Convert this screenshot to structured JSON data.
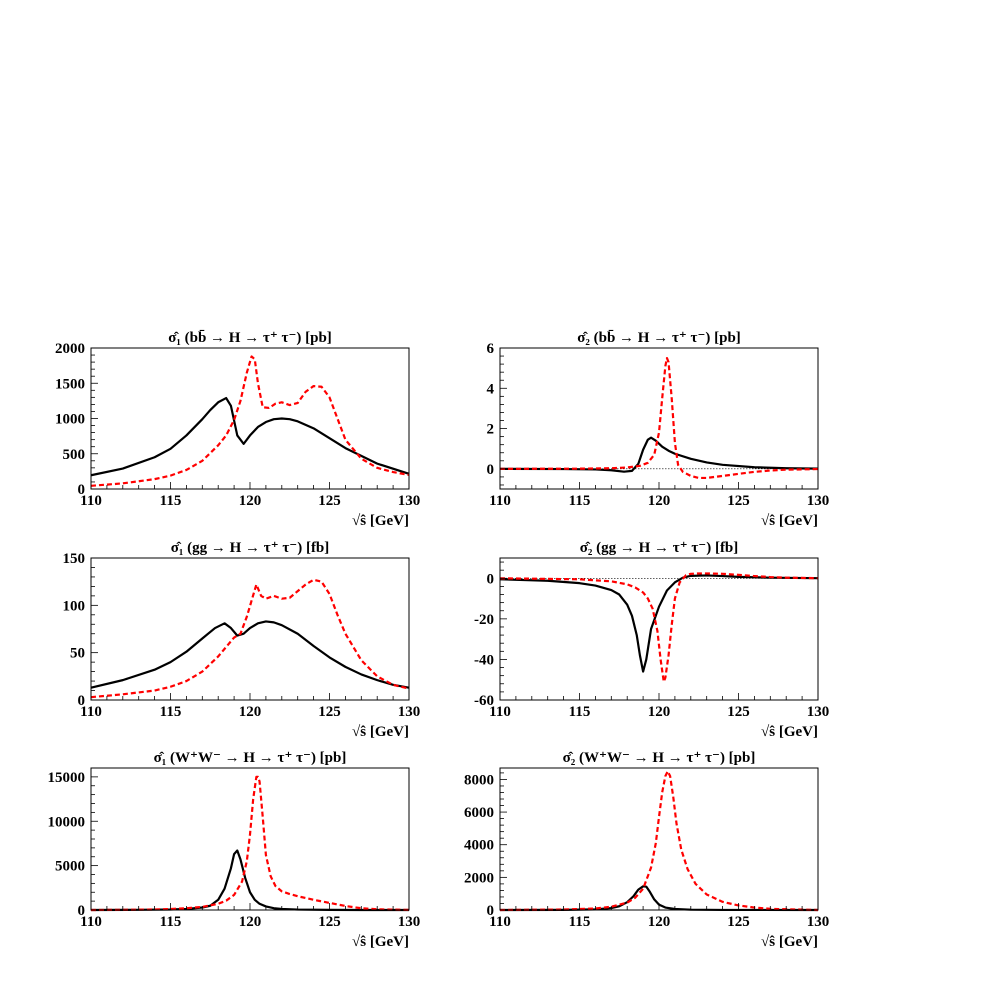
{
  "chart_data": [
    {
      "type": "line",
      "title": "σ̂₁ (bb̄ → H → τ⁺ τ⁻) [pb]",
      "xlabel": "√ŝ [GeV]",
      "ylabel": "",
      "xlim": [
        110,
        130
      ],
      "ylim": [
        0,
        2000
      ],
      "xticks": [
        110,
        115,
        120,
        125,
        130
      ],
      "yticks": [
        0,
        500,
        1000,
        1500,
        2000
      ],
      "zero_line": false,
      "series": [
        {
          "style": "solid",
          "color": "#000000",
          "x": [
            110,
            112,
            114,
            115,
            116,
            117,
            117.5,
            118,
            118.5,
            118.8,
            119.2,
            119.6,
            120,
            120.5,
            121,
            121.5,
            122,
            122.5,
            123,
            124,
            125,
            126,
            128,
            130
          ],
          "y": [
            195,
            290,
            450,
            570,
            760,
            990,
            1120,
            1230,
            1290,
            1180,
            760,
            640,
            760,
            880,
            950,
            990,
            1000,
            990,
            960,
            860,
            720,
            580,
            360,
            215
          ]
        },
        {
          "style": "dashed",
          "color": "#ff0000",
          "x": [
            110,
            112,
            114,
            115,
            116,
            117,
            118,
            118.5,
            119,
            119.4,
            119.8,
            120.1,
            120.3,
            120.5,
            120.8,
            121.2,
            121.6,
            122,
            122.5,
            123,
            123.5,
            124,
            124.5,
            125,
            125.5,
            126,
            127,
            128,
            129,
            130
          ],
          "y": [
            45,
            80,
            140,
            190,
            270,
            400,
            620,
            760,
            980,
            1250,
            1650,
            1880,
            1840,
            1500,
            1160,
            1150,
            1210,
            1230,
            1190,
            1220,
            1380,
            1460,
            1450,
            1300,
            1000,
            700,
            430,
            300,
            240,
            200
          ]
        }
      ]
    },
    {
      "type": "line",
      "title": "σ̂₂ (bb̄ → H → τ⁺ τ⁻) [pb]",
      "xlabel": "√ŝ [GeV]",
      "ylabel": "",
      "xlim": [
        110,
        130
      ],
      "ylim": [
        -1,
        6
      ],
      "xticks": [
        110,
        115,
        120,
        125,
        130
      ],
      "yticks": [
        0,
        2,
        4,
        6
      ],
      "zero_line": true,
      "series": [
        {
          "style": "solid",
          "color": "#000000",
          "x": [
            110,
            114,
            116,
            117,
            117.8,
            118.3,
            118.7,
            119,
            119.3,
            119.5,
            119.8,
            120.2,
            120.6,
            121,
            122,
            123,
            124,
            126,
            128,
            130
          ],
          "y": [
            0,
            -0.01,
            -0.03,
            -0.07,
            -0.14,
            -0.1,
            0.25,
            0.95,
            1.45,
            1.55,
            1.4,
            1.1,
            0.9,
            0.75,
            0.5,
            0.32,
            0.2,
            0.08,
            0.03,
            0.01
          ]
        },
        {
          "style": "dashed",
          "color": "#ff0000",
          "x": [
            110,
            115,
            117,
            118,
            118.8,
            119.3,
            119.7,
            120,
            120.2,
            120.4,
            120.5,
            120.6,
            120.8,
            121,
            121.2,
            121.5,
            122,
            122.5,
            123,
            124,
            125,
            126,
            127,
            128,
            130
          ],
          "y": [
            0,
            0.01,
            0.03,
            0.07,
            0.15,
            0.3,
            0.7,
            1.8,
            3.5,
            5.1,
            5.5,
            5.3,
            3.5,
            1.3,
            0.2,
            -0.15,
            -0.35,
            -0.45,
            -0.45,
            -0.35,
            -0.25,
            -0.15,
            -0.08,
            -0.04,
            -0.01
          ]
        }
      ]
    },
    {
      "type": "line",
      "title": "σ̂₁ (gg → H → τ⁺ τ⁻) [fb]",
      "xlabel": "√ŝ [GeV]",
      "ylabel": "",
      "xlim": [
        110,
        130
      ],
      "ylim": [
        0,
        150
      ],
      "xticks": [
        110,
        115,
        120,
        125,
        130
      ],
      "yticks": [
        0,
        50,
        100,
        150
      ],
      "zero_line": false,
      "series": [
        {
          "style": "solid",
          "color": "#000000",
          "x": [
            110,
            112,
            114,
            115,
            116,
            117,
            117.8,
            118.4,
            118.8,
            119.2,
            119.6,
            120,
            120.5,
            121,
            121.5,
            122,
            123,
            124,
            125,
            126,
            127,
            128,
            129,
            130
          ],
          "y": [
            13,
            21,
            32,
            40,
            51,
            65,
            76,
            81,
            76,
            68,
            70,
            76,
            81,
            83,
            82,
            79,
            70,
            57,
            45,
            35,
            27,
            21,
            16,
            13
          ]
        },
        {
          "style": "dashed",
          "color": "#ff0000",
          "x": [
            110,
            112,
            114,
            115,
            116,
            117,
            118,
            118.5,
            119,
            119.4,
            119.8,
            120.1,
            120.4,
            120.7,
            121,
            121.5,
            122,
            122.5,
            123,
            123.5,
            124,
            124.5,
            125,
            125.5,
            126,
            127,
            128,
            129,
            130
          ],
          "y": [
            3,
            6,
            10,
            14,
            20,
            30,
            46,
            56,
            66,
            70,
            88,
            105,
            122,
            110,
            107,
            110,
            107,
            108,
            115,
            122,
            127,
            125,
            112,
            90,
            70,
            42,
            25,
            16,
            12
          ]
        }
      ]
    },
    {
      "type": "line",
      "title": "σ̂₂ (gg → H → τ⁺ τ⁻) [fb]",
      "xlabel": "√ŝ [GeV]",
      "ylabel": "",
      "xlim": [
        110,
        130
      ],
      "ylim": [
        -60,
        10
      ],
      "xticks": [
        110,
        115,
        120,
        125,
        130
      ],
      "yticks": [
        -60,
        -40,
        -20,
        0
      ],
      "zero_line": true,
      "series": [
        {
          "style": "solid",
          "color": "#000000",
          "x": [
            110,
            113,
            115,
            116,
            117,
            117.5,
            118,
            118.3,
            118.6,
            118.8,
            119,
            119.2,
            119.5,
            120,
            120.5,
            121,
            121.5,
            122,
            123,
            124,
            125,
            127,
            130
          ],
          "y": [
            -0.5,
            -1.2,
            -2.4,
            -3.6,
            -5.8,
            -8,
            -13,
            -18.5,
            -28,
            -38,
            -46,
            -40,
            -25,
            -14,
            -6,
            -2,
            0.3,
            1.2,
            1.4,
            1.1,
            0.7,
            0.3,
            0.05
          ]
        },
        {
          "style": "dashed",
          "color": "#ff0000",
          "x": [
            110,
            115,
            117,
            118,
            118.5,
            119,
            119.3,
            119.6,
            119.9,
            120.1,
            120.3,
            120.4,
            120.6,
            120.8,
            121,
            121.3,
            121.7,
            122,
            122.5,
            123,
            124,
            125,
            126,
            127,
            128,
            130
          ],
          "y": [
            0,
            -0.5,
            -1.5,
            -3,
            -4.5,
            -7,
            -10,
            -15,
            -26,
            -40,
            -51,
            -49,
            -38,
            -23,
            -10,
            -2,
            1.5,
            2.2,
            2.4,
            2.4,
            2.2,
            1.7,
            1.1,
            0.6,
            0.3,
            0.05
          ]
        }
      ]
    },
    {
      "type": "line",
      "title": "σ̂₁ (W⁺W⁻ → H → τ⁺ τ⁻) [pb]",
      "xlabel": "√ŝ [GeV]",
      "ylabel": "",
      "xlim": [
        110,
        130
      ],
      "ylim": [
        0,
        16000
      ],
      "xticks": [
        110,
        115,
        120,
        125,
        130
      ],
      "yticks": [
        0,
        5000,
        10000,
        15000
      ],
      "zero_line": false,
      "series": [
        {
          "style": "solid",
          "color": "#000000",
          "x": [
            110,
            113,
            115,
            116,
            117,
            117.5,
            118,
            118.4,
            118.8,
            119,
            119.2,
            119.4,
            119.7,
            120,
            120.3,
            120.6,
            121,
            121.5,
            122,
            123,
            125,
            127,
            130
          ],
          "y": [
            0,
            20,
            60,
            120,
            280,
            480,
            1150,
            2400,
            4700,
            6300,
            6700,
            5700,
            3600,
            2000,
            1150,
            700,
            400,
            200,
            120,
            50,
            10,
            3,
            0
          ]
        },
        {
          "style": "dashed",
          "color": "#ff0000",
          "x": [
            110,
            112,
            114,
            115,
            116,
            117,
            118,
            118.5,
            119,
            119.5,
            119.8,
            120,
            120.2,
            120.4,
            120.5,
            120.6,
            120.8,
            121,
            121.3,
            121.6,
            122,
            122.5,
            123,
            124,
            125,
            126,
            127,
            128,
            130
          ],
          "y": [
            0,
            20,
            60,
            110,
            200,
            350,
            700,
            1050,
            1700,
            3200,
            5500,
            8500,
            12500,
            15000,
            15000,
            14500,
            10500,
            6200,
            3800,
            2700,
            2100,
            1800,
            1550,
            1150,
            800,
            450,
            200,
            80,
            10
          ]
        }
      ]
    },
    {
      "type": "line",
      "title": "σ̂₂ (W⁺W⁻ → H → τ⁺ τ⁻) [pb]",
      "xlabel": "√ŝ [GeV]",
      "ylabel": "",
      "xlim": [
        110,
        130
      ],
      "ylim": [
        0,
        8700
      ],
      "xticks": [
        110,
        115,
        120,
        125,
        130
      ],
      "yticks": [
        0,
        2000,
        4000,
        6000,
        8000
      ],
      "zero_line": false,
      "series": [
        {
          "style": "solid",
          "color": "#000000",
          "x": [
            110,
            114,
            116,
            117,
            117.5,
            118,
            118.4,
            118.7,
            119,
            119.2,
            119.4,
            119.7,
            120,
            120.4,
            121,
            122,
            124,
            130
          ],
          "y": [
            0,
            10,
            40,
            120,
            230,
            480,
            850,
            1250,
            1450,
            1430,
            1150,
            650,
            330,
            150,
            60,
            20,
            5,
            0
          ]
        },
        {
          "style": "dashed",
          "color": "#ff0000",
          "x": [
            110,
            114,
            116,
            117,
            118,
            118.5,
            119,
            119.5,
            119.8,
            120,
            120.2,
            120.4,
            120.55,
            120.7,
            120.9,
            121.1,
            121.4,
            121.8,
            122.3,
            123,
            124,
            125,
            126,
            127,
            130
          ],
          "y": [
            0,
            30,
            90,
            200,
            450,
            750,
            1300,
            2600,
            4100,
            5700,
            7200,
            8200,
            8500,
            8200,
            6900,
            5300,
            3700,
            2500,
            1600,
            950,
            500,
            280,
            150,
            70,
            0
          ]
        }
      ]
    }
  ]
}
